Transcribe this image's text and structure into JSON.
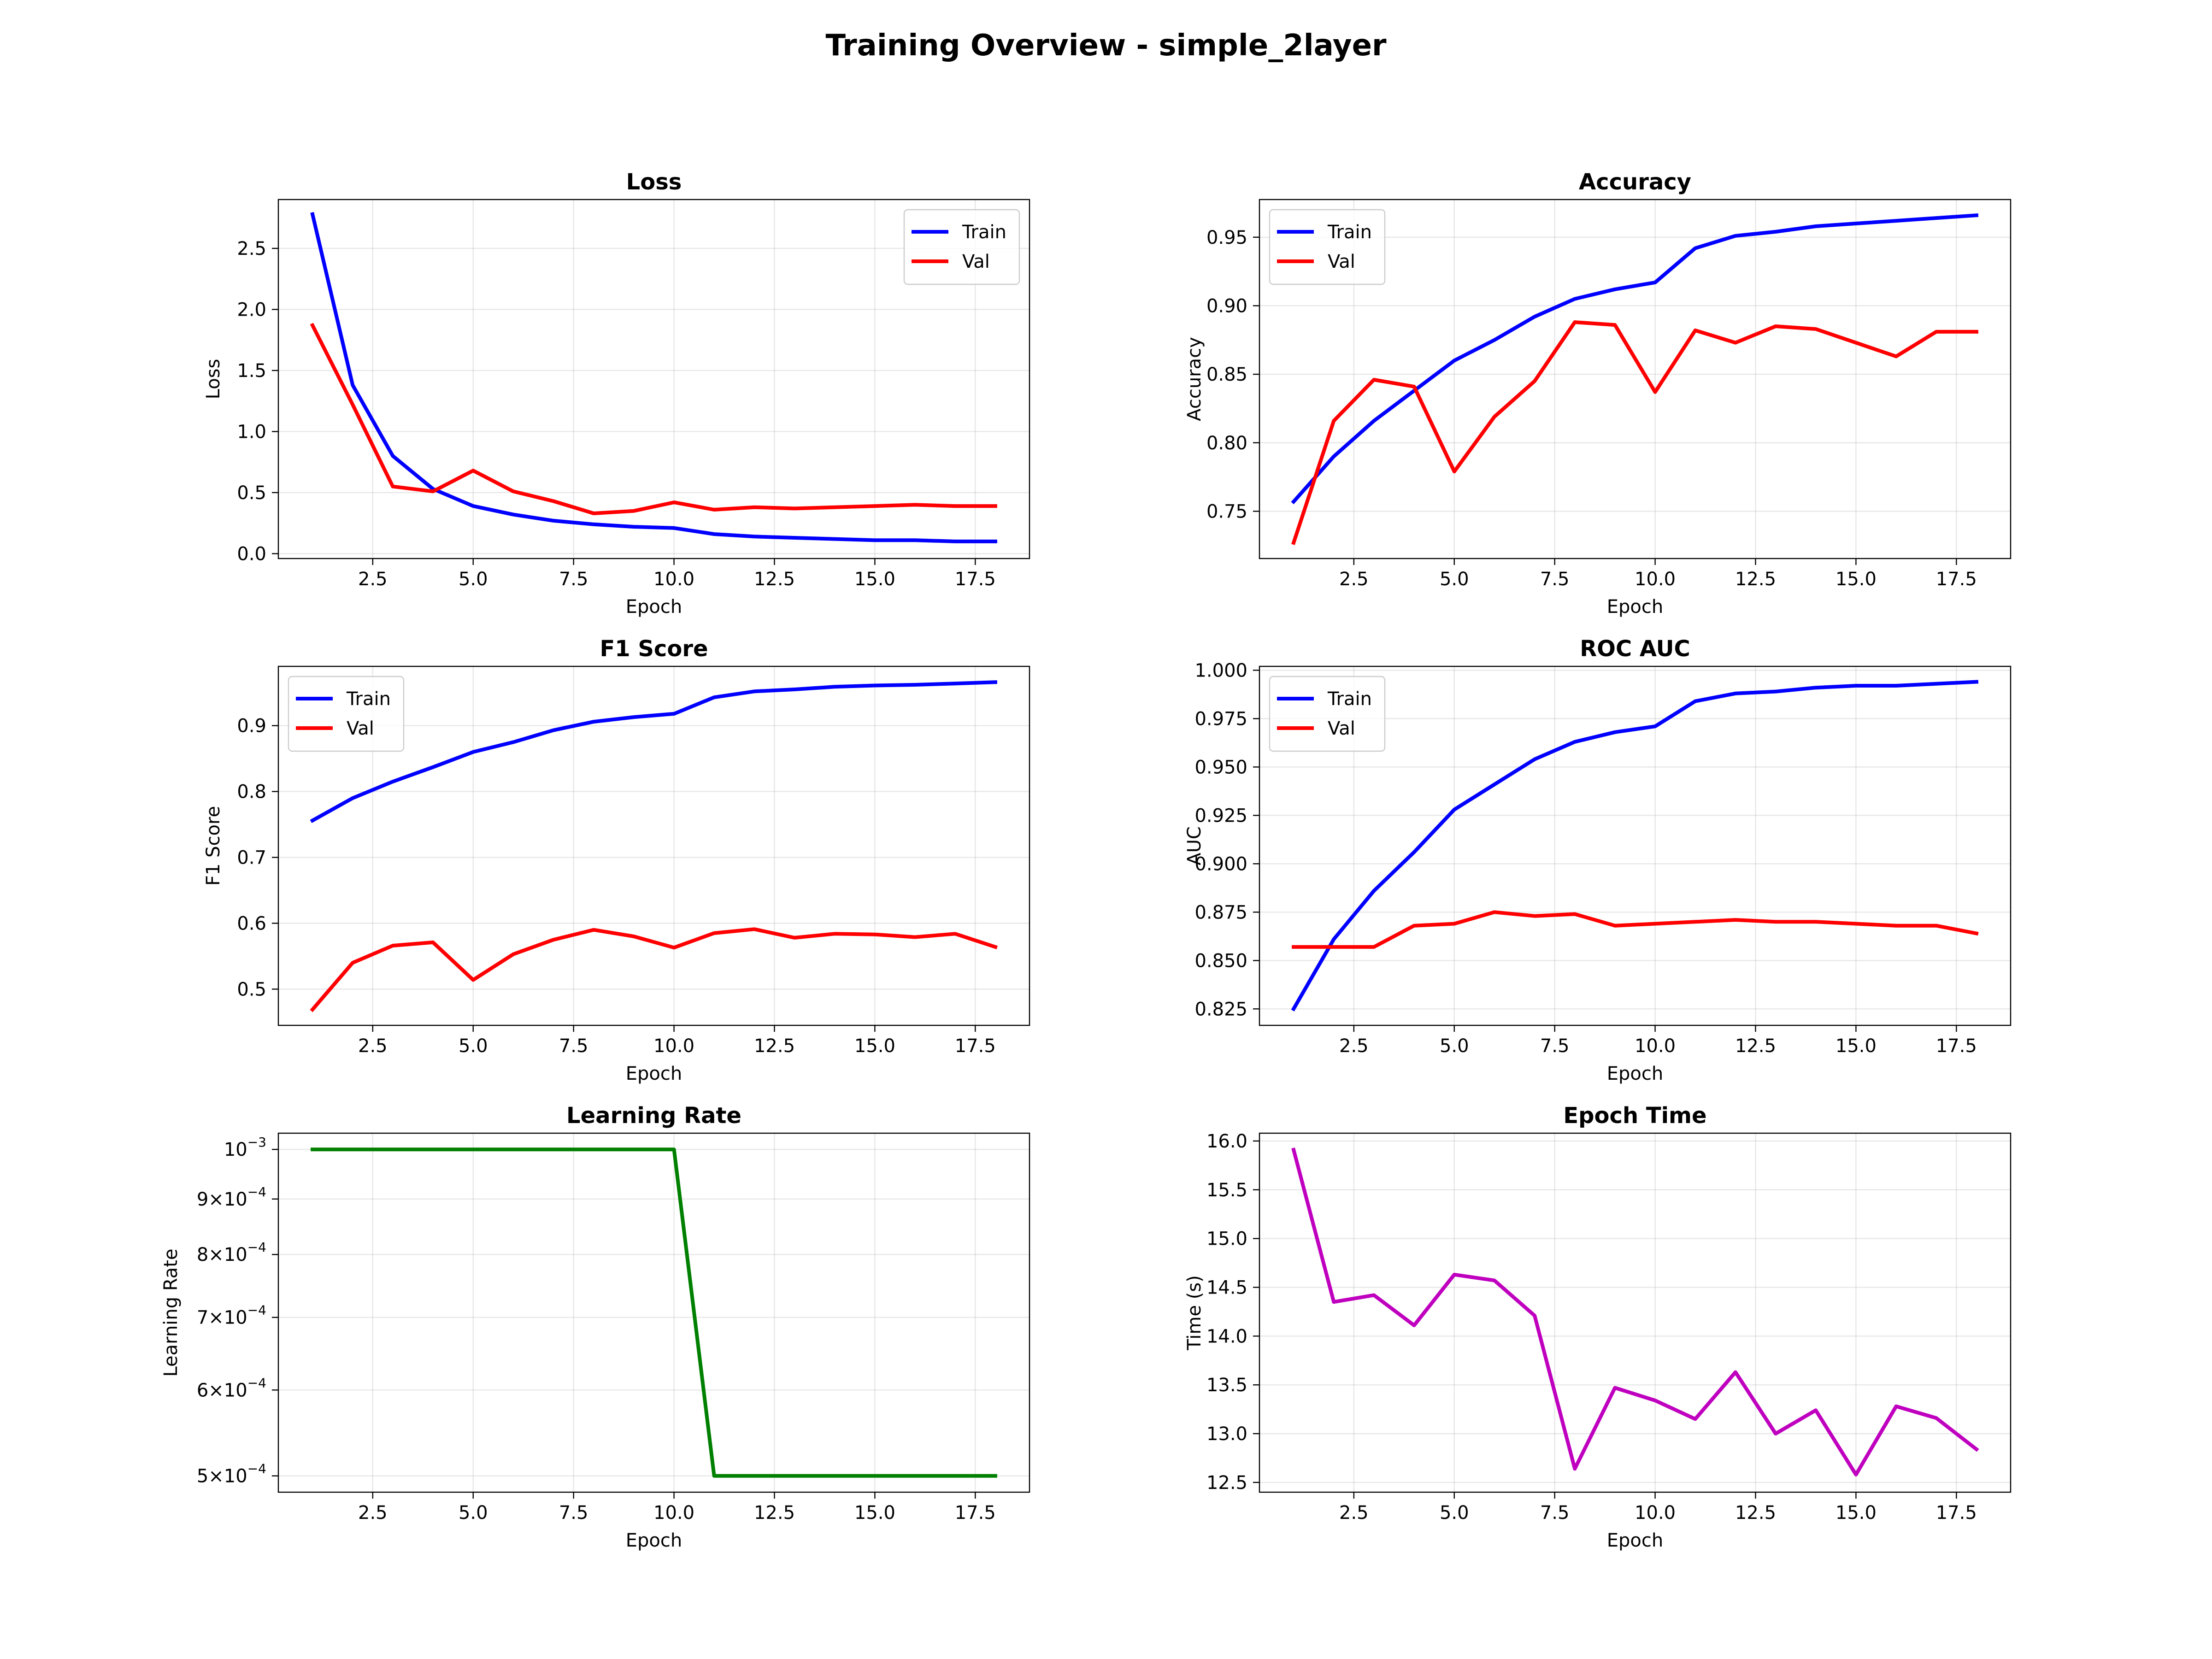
{
  "figure": {
    "title": "Training Overview - simple_2layer"
  },
  "chart_data": [
    {
      "id": "loss",
      "type": "line",
      "title": "Loss",
      "xlabel": "Epoch",
      "ylabel": "Loss",
      "xlim": [
        0.15,
        18.85
      ],
      "ylim": [
        -0.04,
        2.9
      ],
      "xticks": [
        2.5,
        5.0,
        7.5,
        10.0,
        12.5,
        15.0,
        17.5
      ],
      "yticks": [
        0.0,
        0.5,
        1.0,
        1.5,
        2.0,
        2.5
      ],
      "yscale": "linear",
      "grid": true,
      "legend": "upper right",
      "x": [
        1,
        2,
        3,
        4,
        5,
        6,
        7,
        8,
        9,
        10,
        11,
        12,
        13,
        14,
        15,
        16,
        17,
        18
      ],
      "series": [
        {
          "name": "Train",
          "color": "#0000ff",
          "values": [
            2.78,
            1.38,
            0.8,
            0.53,
            0.39,
            0.32,
            0.27,
            0.24,
            0.22,
            0.21,
            0.16,
            0.14,
            0.13,
            0.12,
            0.11,
            0.11,
            0.1,
            0.1
          ]
        },
        {
          "name": "Val",
          "color": "#ff0000",
          "values": [
            1.87,
            1.22,
            0.55,
            0.51,
            0.68,
            0.51,
            0.43,
            0.33,
            0.35,
            0.42,
            0.36,
            0.38,
            0.37,
            0.38,
            0.39,
            0.4,
            0.39,
            0.39
          ]
        }
      ]
    },
    {
      "id": "accuracy",
      "type": "line",
      "title": "Accuracy",
      "xlabel": "Epoch",
      "ylabel": "Accuracy",
      "xlim": [
        0.15,
        18.85
      ],
      "ylim": [
        0.7155,
        0.9775
      ],
      "xticks": [
        2.5,
        5.0,
        7.5,
        10.0,
        12.5,
        15.0,
        17.5
      ],
      "yticks": [
        0.75,
        0.8,
        0.85,
        0.9,
        0.95
      ],
      "yscale": "linear",
      "grid": true,
      "legend": "upper left",
      "x": [
        1,
        2,
        3,
        4,
        5,
        6,
        7,
        8,
        9,
        10,
        11,
        12,
        13,
        14,
        15,
        16,
        17,
        18
      ],
      "series": [
        {
          "name": "Train",
          "color": "#0000ff",
          "values": [
            0.757,
            0.79,
            0.816,
            0.838,
            0.86,
            0.875,
            0.892,
            0.905,
            0.912,
            0.917,
            0.942,
            0.951,
            0.954,
            0.958,
            0.96,
            0.962,
            0.964,
            0.966
          ]
        },
        {
          "name": "Val",
          "color": "#ff0000",
          "values": [
            0.727,
            0.816,
            0.846,
            0.841,
            0.779,
            0.819,
            0.845,
            0.888,
            0.886,
            0.837,
            0.882,
            0.873,
            0.885,
            0.883,
            0.873,
            0.863,
            0.881,
            0.881
          ]
        }
      ]
    },
    {
      "id": "f1",
      "type": "line",
      "title": "F1 Score",
      "xlabel": "Epoch",
      "ylabel": "F1 Score",
      "xlim": [
        0.15,
        18.85
      ],
      "ylim": [
        0.445,
        0.99
      ],
      "xticks": [
        2.5,
        5.0,
        7.5,
        10.0,
        12.5,
        15.0,
        17.5
      ],
      "yticks": [
        0.5,
        0.6,
        0.7,
        0.8,
        0.9
      ],
      "yscale": "linear",
      "grid": true,
      "legend": "upper left",
      "x": [
        1,
        2,
        3,
        4,
        5,
        6,
        7,
        8,
        9,
        10,
        11,
        12,
        13,
        14,
        15,
        16,
        17,
        18
      ],
      "series": [
        {
          "name": "Train",
          "color": "#0000ff",
          "values": [
            0.756,
            0.79,
            0.815,
            0.837,
            0.86,
            0.875,
            0.893,
            0.906,
            0.913,
            0.918,
            0.943,
            0.952,
            0.955,
            0.959,
            0.961,
            0.962,
            0.964,
            0.966
          ]
        },
        {
          "name": "Val",
          "color": "#ff0000",
          "values": [
            0.469,
            0.54,
            0.566,
            0.571,
            0.514,
            0.553,
            0.575,
            0.59,
            0.58,
            0.563,
            0.585,
            0.591,
            0.578,
            0.584,
            0.583,
            0.579,
            0.584,
            0.564
          ]
        }
      ]
    },
    {
      "id": "rocauc",
      "type": "line",
      "title": "ROC AUC",
      "xlabel": "Epoch",
      "ylabel": "AUC",
      "xlim": [
        0.15,
        18.85
      ],
      "ylim": [
        0.8165,
        1.002
      ],
      "xticks": [
        2.5,
        5.0,
        7.5,
        10.0,
        12.5,
        15.0,
        17.5
      ],
      "yticks": [
        0.825,
        0.85,
        0.875,
        0.9,
        0.925,
        0.95,
        0.975,
        1.0
      ],
      "ytick_labels": [
        "0.825",
        "0.850",
        "0.875",
        "0.900",
        "0.925",
        "0.950",
        "0.975",
        "1.000"
      ],
      "yscale": "linear",
      "grid": true,
      "legend": "upper left",
      "x": [
        1,
        2,
        3,
        4,
        5,
        6,
        7,
        8,
        9,
        10,
        11,
        12,
        13,
        14,
        15,
        16,
        17,
        18
      ],
      "series": [
        {
          "name": "Train",
          "color": "#0000ff",
          "values": [
            0.825,
            0.861,
            0.886,
            0.906,
            0.928,
            0.941,
            0.954,
            0.963,
            0.968,
            0.971,
            0.984,
            0.988,
            0.989,
            0.991,
            0.992,
            0.992,
            0.993,
            0.994
          ]
        },
        {
          "name": "Val",
          "color": "#ff0000",
          "values": [
            0.857,
            0.857,
            0.857,
            0.868,
            0.869,
            0.875,
            0.873,
            0.874,
            0.868,
            0.869,
            0.87,
            0.871,
            0.87,
            0.87,
            0.869,
            0.868,
            0.868,
            0.864
          ]
        }
      ]
    },
    {
      "id": "lr",
      "type": "line",
      "title": "Learning Rate",
      "xlabel": "Epoch",
      "ylabel": "Learning Rate",
      "xlim": [
        0.15,
        18.85
      ],
      "ylim": [
        0.000483,
        0.001035
      ],
      "xticks": [
        2.5,
        5.0,
        7.5,
        10.0,
        12.5,
        15.0,
        17.5
      ],
      "yscale": "log",
      "yticks": [
        0.0005,
        0.0006,
        0.0007,
        0.0008,
        0.0009,
        0.001
      ],
      "ytick_labels": [
        {
          "mant": "5",
          "exp": "−4"
        },
        {
          "mant": "6",
          "exp": "−4"
        },
        {
          "mant": "7",
          "exp": "−4"
        },
        {
          "mant": "8",
          "exp": "−4"
        },
        {
          "mant": "9",
          "exp": "−4"
        },
        {
          "mant": "",
          "exp": "−3"
        }
      ],
      "grid": true,
      "legend": "none",
      "x": [
        1,
        2,
        3,
        4,
        5,
        6,
        7,
        8,
        9,
        10,
        11,
        12,
        13,
        14,
        15,
        16,
        17,
        18
      ],
      "series": [
        {
          "name": "",
          "color": "#008000",
          "values": [
            0.001,
            0.001,
            0.001,
            0.001,
            0.001,
            0.001,
            0.001,
            0.001,
            0.001,
            0.001,
            0.0005,
            0.0005,
            0.0005,
            0.0005,
            0.0005,
            0.0005,
            0.0005,
            0.0005
          ]
        }
      ]
    },
    {
      "id": "epochtime",
      "type": "line",
      "title": "Epoch Time",
      "xlabel": "Epoch",
      "ylabel": "Time (s)",
      "xlim": [
        0.15,
        18.85
      ],
      "ylim": [
        12.4,
        16.08
      ],
      "xticks": [
        2.5,
        5.0,
        7.5,
        10.0,
        12.5,
        15.0,
        17.5
      ],
      "yticks": [
        12.5,
        13.0,
        13.5,
        14.0,
        14.5,
        15.0,
        15.5,
        16.0
      ],
      "yscale": "linear",
      "grid": true,
      "legend": "none",
      "x": [
        1,
        2,
        3,
        4,
        5,
        6,
        7,
        8,
        9,
        10,
        11,
        12,
        13,
        14,
        15,
        16,
        17,
        18
      ],
      "series": [
        {
          "name": "",
          "color": "#bf00bf",
          "values": [
            15.91,
            14.35,
            14.42,
            14.11,
            14.63,
            14.57,
            14.21,
            12.64,
            13.47,
            13.34,
            13.15,
            13.63,
            13.0,
            13.24,
            12.58,
            13.28,
            13.16,
            12.84
          ]
        }
      ]
    }
  ]
}
